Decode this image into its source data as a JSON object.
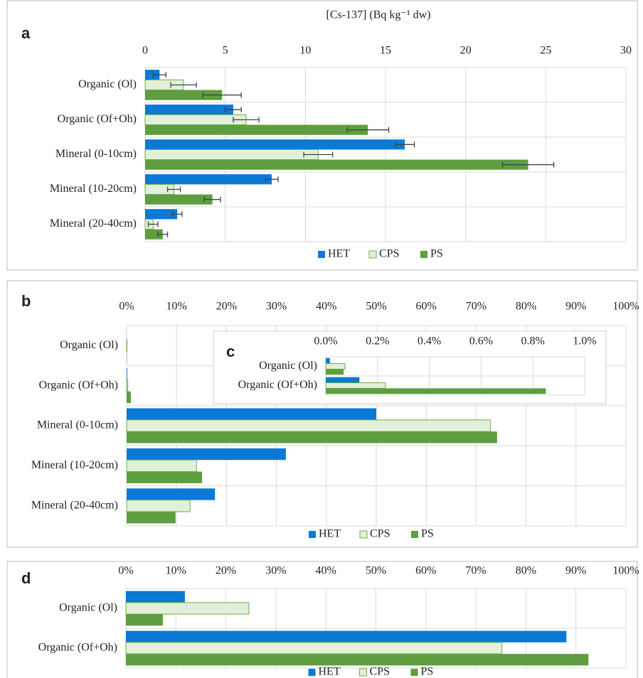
{
  "chart_data": [
    {
      "type": "bar",
      "orientation": "horizontal",
      "x_axis_position": "top",
      "panel_label": "a",
      "title": "[Cs-137] (Bq kg⁻¹ dw)",
      "categories": [
        "Organic (Ol)",
        "Organic (Of+Oh)",
        "Mineral (0-10cm)",
        "Mineral (10-20cm)",
        "Mineral (20-40cm)"
      ],
      "series": [
        {
          "name": "HET",
          "color": "#0a7ad6",
          "values": [
            0.9,
            5.5,
            16.2,
            7.9,
            2.0
          ],
          "errors": [
            0.4,
            0.5,
            0.6,
            0.4,
            0.3
          ]
        },
        {
          "name": "CPS",
          "color": "#e2efd9",
          "edge_color": "#70ad47",
          "values": [
            2.4,
            6.3,
            10.8,
            1.8,
            0.5
          ],
          "errors": [
            0.8,
            0.8,
            0.9,
            0.4,
            0.3
          ]
        },
        {
          "name": "PS",
          "color": "#5e9e3e",
          "values": [
            4.8,
            13.9,
            23.9,
            4.2,
            1.1
          ],
          "errors": [
            1.2,
            1.3,
            1.6,
            0.5,
            0.3
          ]
        }
      ],
      "xlim": [
        0,
        30
      ],
      "xticks": [
        0,
        5,
        10,
        15,
        20,
        25,
        30
      ],
      "grid": true,
      "legend": "bottom"
    },
    {
      "type": "bar",
      "orientation": "horizontal",
      "x_axis_position": "top",
      "panel_label": "b",
      "categories": [
        "Organic (Ol)",
        "Organic (Of+Oh)",
        "Mineral (0-10cm)",
        "Mineral (10-20cm)",
        "Mineral (20-40cm)"
      ],
      "series": [
        {
          "name": "HET",
          "color": "#0a7ad6",
          "values": [
            0.016,
            0.13,
            50.0,
            31.9,
            17.7
          ]
        },
        {
          "name": "CPS",
          "color": "#e2efd9",
          "edge_color": "#70ad47",
          "values": [
            0.074,
            0.23,
            72.9,
            14.0,
            12.7
          ]
        },
        {
          "name": "PS",
          "color": "#5e9e3e",
          "values": [
            0.069,
            0.85,
            74.2,
            15.1,
            9.8
          ]
        }
      ],
      "xlim": [
        0,
        100
      ],
      "xticks": [
        {
          "value": 0,
          "label": "0%"
        },
        {
          "value": 10,
          "label": "10%"
        },
        {
          "value": 20,
          "label": "20%"
        },
        {
          "value": 30,
          "label": "30%"
        },
        {
          "value": 40,
          "label": "40%"
        },
        {
          "value": 50,
          "label": "50%"
        },
        {
          "value": 60,
          "label": "60%"
        },
        {
          "value": 70,
          "label": "70%"
        },
        {
          "value": 80,
          "label": "80%"
        },
        {
          "value": 90,
          "label": "90%"
        },
        {
          "value": 100,
          "label": "100%"
        }
      ],
      "grid": true,
      "legend": "bottom"
    },
    {
      "type": "bar",
      "orientation": "horizontal",
      "x_axis_position": "top",
      "panel_label": "c",
      "categories": [
        "Organic (Ol)",
        "Organic (Of+Oh)"
      ],
      "series": [
        {
          "name": "HET",
          "color": "#0a7ad6",
          "values": [
            0.016,
            0.13
          ]
        },
        {
          "name": "CPS",
          "color": "#e2efd9",
          "edge_color": "#70ad47",
          "values": [
            0.074,
            0.23
          ]
        },
        {
          "name": "PS",
          "color": "#5e9e3e",
          "values": [
            0.069,
            0.85
          ]
        }
      ],
      "xlim": [
        0,
        1
      ],
      "xticks": [
        {
          "value": 0,
          "label": "0.0%"
        },
        {
          "value": 0.2,
          "label": "0.2%"
        },
        {
          "value": 0.4,
          "label": "0.4%"
        },
        {
          "value": 0.6,
          "label": "0.6%"
        },
        {
          "value": 0.8,
          "label": "0.8%"
        },
        {
          "value": 1,
          "label": "1.0%"
        }
      ],
      "grid": true
    },
    {
      "type": "bar",
      "orientation": "horizontal",
      "x_axis_position": "top",
      "panel_label": "d",
      "categories": [
        "Organic (Ol)",
        "Organic (Of+Oh)"
      ],
      "series": [
        {
          "name": "HET",
          "color": "#0a7ad6",
          "values": [
            11.8,
            88.1
          ]
        },
        {
          "name": "CPS",
          "color": "#e2efd9",
          "edge_color": "#70ad47",
          "values": [
            24.6,
            75.2
          ]
        },
        {
          "name": "PS",
          "color": "#5e9e3e",
          "values": [
            7.4,
            92.5
          ]
        }
      ],
      "xlim": [
        0,
        100
      ],
      "xticks": [
        {
          "value": 0,
          "label": "0%"
        },
        {
          "value": 10,
          "label": "10%"
        },
        {
          "value": 20,
          "label": "20%"
        },
        {
          "value": 30,
          "label": "30%"
        },
        {
          "value": 40,
          "label": "40%"
        },
        {
          "value": 50,
          "label": "50%"
        },
        {
          "value": 60,
          "label": "60%"
        },
        {
          "value": 70,
          "label": "70%"
        },
        {
          "value": 80,
          "label": "80%"
        },
        {
          "value": 90,
          "label": "90%"
        },
        {
          "value": 100,
          "label": "100%"
        }
      ],
      "grid": true,
      "legend": "bottom"
    }
  ]
}
